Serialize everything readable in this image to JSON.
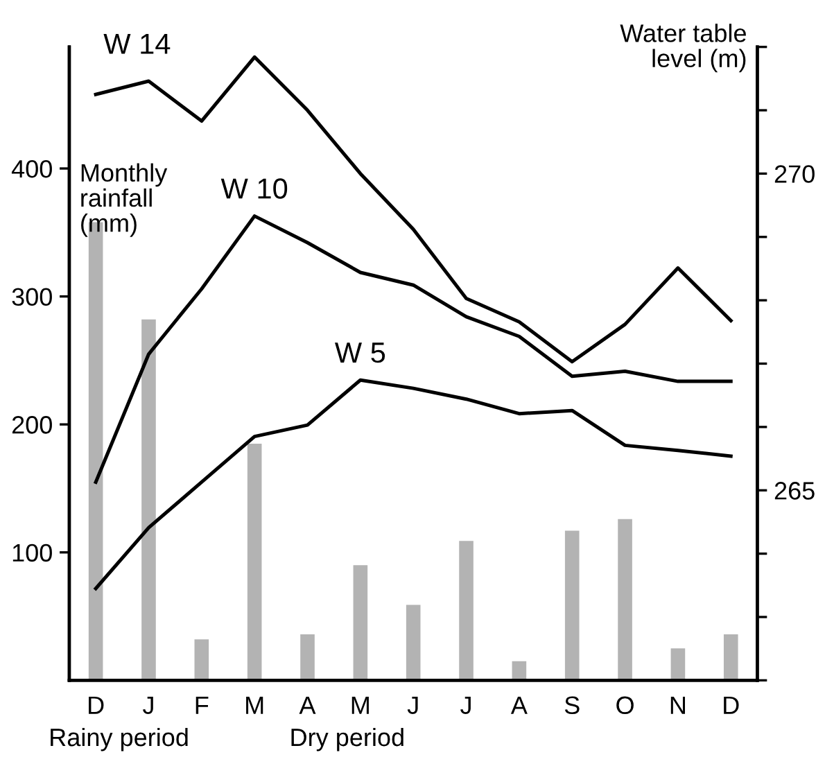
{
  "chart_data": {
    "type": "bar",
    "categories": [
      "D",
      "J",
      "F",
      "M",
      "A",
      "M",
      "J",
      "J",
      "A",
      "S",
      "O",
      "N",
      "D"
    ],
    "ylabel": "Monthly rainfall (mm)",
    "y2label": "Water table level (m)",
    "ylim": [
      0,
      495
    ],
    "yticks": [
      100,
      200,
      300,
      400
    ],
    "y2lim": [
      262,
      272
    ],
    "y2ticks": [
      {
        "value": 262,
        "label": null
      },
      {
        "value": 263,
        "label": null
      },
      {
        "value": 264,
        "label": null
      },
      265,
      {
        "value": 266,
        "label": null
      },
      {
        "value": 267,
        "label": null
      },
      {
        "value": 268,
        "label": null
      },
      {
        "value": 269,
        "label": null
      },
      270,
      {
        "value": 271,
        "label": null
      },
      {
        "value": 272,
        "label": null
      }
    ],
    "series": [
      {
        "color": "#b3b3b3",
        "values": [
          358,
          282,
          32,
          185,
          36,
          90,
          59,
          109,
          15,
          117,
          126,
          25,
          36
        ]
      },
      {
        "type": "line",
        "name": "W 14",
        "axis": "y2",
        "color": "#000000",
        "values": [
          271.25,
          271.46,
          270.83,
          271.84,
          271.0,
          270.0,
          269.12,
          268.03,
          267.66,
          267.03,
          267.62,
          268.51,
          267.68
        ]
      },
      {
        "type": "line",
        "name": "W 10",
        "axis": "y2",
        "color": "#000000",
        "values": [
          265.13,
          267.15,
          268.18,
          269.33,
          268.91,
          268.44,
          268.24,
          267.74,
          267.43,
          266.8,
          266.88,
          266.72,
          266.72
        ]
      },
      {
        "type": "line",
        "name": "W 5",
        "axis": "y2",
        "color": "#000000",
        "values": [
          263.45,
          264.41,
          265.13,
          265.85,
          266.03,
          266.74,
          266.61,
          266.44,
          266.21,
          266.26,
          265.71,
          265.63,
          265.54
        ]
      }
    ],
    "annotations": [
      "Rainy period",
      "Dry period"
    ],
    "grid": false,
    "legend": false
  }
}
